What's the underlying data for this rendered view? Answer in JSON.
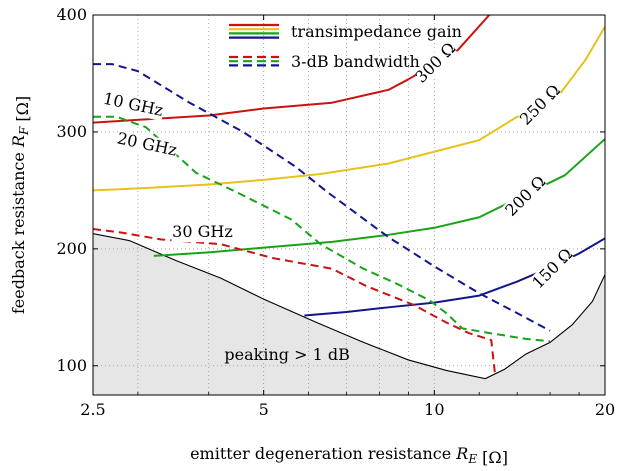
{
  "chart_data": {
    "type": "line",
    "title": "",
    "xlabel": "emitter degeneration resistance R_E [Ω]",
    "ylabel": "feedback resistance R_F [Ω]",
    "xscale": "log",
    "xlim": [
      2.5,
      20
    ],
    "ylim": [
      75,
      400
    ],
    "x_ticks": [
      2.5,
      5,
      10,
      20
    ],
    "x_tick_labels": [
      "2.5",
      "5",
      "10",
      "20"
    ],
    "y_ticks": [
      100,
      200,
      300,
      400
    ],
    "y_tick_labels": [
      "100",
      "200",
      "300",
      "400"
    ],
    "grid": true,
    "legend_position": "top-center",
    "legend": [
      {
        "label": "transimpedance gain",
        "style": "solid",
        "colors": [
          "#cc1111",
          "#e6c21a",
          "#19a319",
          "#13158f"
        ]
      },
      {
        "label": "3-dB bandwidth",
        "style": "dashed",
        "colors": [
          "#cc1111",
          "#19a319",
          "#13158f"
        ]
      }
    ],
    "region": {
      "label": "peaking > 1 dB",
      "fill": "#e6e6e6",
      "boundary": [
        [
          2.5,
          213
        ],
        [
          2.9,
          207
        ],
        [
          3.5,
          190
        ],
        [
          4.2,
          175
        ],
        [
          5.0,
          157
        ],
        [
          6.2,
          137
        ],
        [
          7.5,
          120
        ],
        [
          9.0,
          105
        ],
        [
          10.5,
          96
        ],
        [
          12.3,
          89
        ],
        [
          13.3,
          97
        ],
        [
          14.5,
          110
        ],
        [
          16,
          120
        ],
        [
          17.5,
          135
        ],
        [
          19,
          155
        ],
        [
          20,
          178
        ]
      ]
    },
    "series": [
      {
        "name": "300 Ω",
        "kind": "gain",
        "color": "#cc1111",
        "dashed": false,
        "x": [
          2.5,
          4,
          5,
          6.6,
          8.3,
          9,
          11,
          12.5
        ],
        "y": [
          308,
          314,
          320,
          325,
          336,
          345,
          370,
          400
        ]
      },
      {
        "name": "250 Ω",
        "kind": "gain",
        "color": "#e6c21a",
        "dashed": false,
        "x": [
          2.5,
          3.1,
          4,
          5,
          6.3,
          8.3,
          12,
          14,
          16.5,
          18.5,
          20
        ],
        "y": [
          250,
          252,
          255,
          259,
          264,
          273,
          293,
          313,
          330,
          362,
          390
        ]
      },
      {
        "name": "200 Ω",
        "kind": "gain",
        "color": "#19a319",
        "dashed": false,
        "x": [
          3.2,
          4,
          5,
          6.6,
          8.3,
          10,
          12,
          14,
          17,
          20
        ],
        "y": [
          194,
          197,
          201,
          206,
          212,
          218,
          227,
          243,
          263,
          294
        ]
      },
      {
        "name": "150 Ω",
        "kind": "gain",
        "color": "#13158f",
        "dashed": false,
        "x": [
          5.9,
          7,
          8.3,
          10,
          12,
          14,
          16,
          18,
          20
        ],
        "y": [
          143,
          146,
          150,
          154,
          160,
          172,
          184,
          196,
          209
        ]
      },
      {
        "name": "10 GHz",
        "kind": "bandwidth",
        "color": "#13158f",
        "dashed": true,
        "x": [
          2.5,
          2.7,
          3.0,
          3.7,
          4.6,
          5.7,
          6.5,
          8.3,
          10,
          12,
          14,
          16
        ],
        "y": [
          358,
          358,
          352,
          325,
          300,
          270,
          248,
          210,
          185,
          162,
          145,
          130
        ]
      },
      {
        "name": "20 GHz",
        "kind": "bandwidth",
        "color": "#19a319",
        "dashed": true,
        "x": [
          2.5,
          2.75,
          3.1,
          3.8,
          4.5,
          5.6,
          6.3,
          7.5,
          8.6,
          9.8,
          10.5,
          11.2,
          12.5,
          14.5,
          16
        ],
        "y": [
          313,
          313,
          304,
          265,
          248,
          225,
          204,
          183,
          170,
          156,
          145,
          132,
          128,
          123,
          121
        ]
      },
      {
        "name": "30 GHz",
        "kind": "bandwidth",
        "color": "#cc1111",
        "dashed": true,
        "x": [
          2.5,
          2.8,
          3.3,
          4.2,
          5.2,
          6.6,
          7.6,
          9.2,
          10.5,
          11.5,
          12.6,
          12.8
        ],
        "y": [
          217,
          214,
          208,
          204,
          192,
          183,
          168,
          152,
          137,
          128,
          122,
          92
        ]
      }
    ],
    "annotations": [
      {
        "text": "10 GHz",
        "x": 2.93,
        "y": 319
      },
      {
        "text": "20 GHz",
        "x": 3.1,
        "y": 285
      },
      {
        "text": "30 GHz",
        "x": 3.9,
        "y": 210
      },
      {
        "text": "300 Ω",
        "x": 10.2,
        "y": 356
      },
      {
        "text": "250 Ω",
        "x": 15.6,
        "y": 320
      },
      {
        "text": "200 Ω",
        "x": 14.7,
        "y": 242
      },
      {
        "text": "150 Ω",
        "x": 16.4,
        "y": 180
      },
      {
        "text": "peaking > 1 dB",
        "x": 5.5,
        "y": 105
      }
    ]
  }
}
